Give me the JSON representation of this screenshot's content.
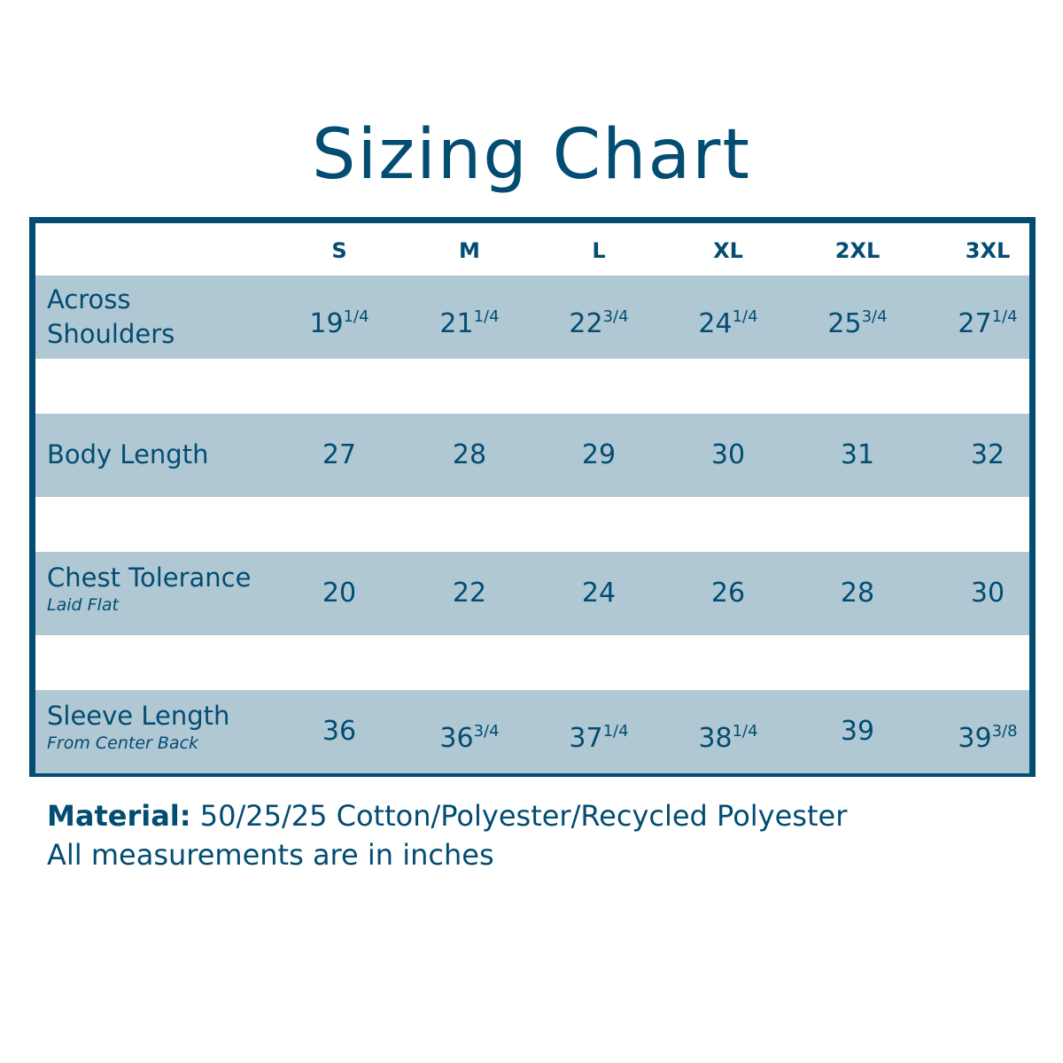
{
  "title": "Sizing Chart",
  "colors": {
    "primary": "#034c72",
    "row_fill": "#afc8d4"
  },
  "sizes": [
    "S",
    "M",
    "L",
    "XL",
    "2XL",
    "3XL"
  ],
  "rows": [
    {
      "label": "Across Shoulders",
      "sublabel": "",
      "values": [
        {
          "whole": "19",
          "frac": "1/4"
        },
        {
          "whole": "21",
          "frac": "1/4"
        },
        {
          "whole": "22",
          "frac": "3/4"
        },
        {
          "whole": "24",
          "frac": "1/4"
        },
        {
          "whole": "25",
          "frac": "3/4"
        },
        {
          "whole": "27",
          "frac": "1/4"
        }
      ]
    },
    {
      "label": "Body Length",
      "sublabel": "",
      "values": [
        {
          "whole": "27",
          "frac": ""
        },
        {
          "whole": "28",
          "frac": ""
        },
        {
          "whole": "29",
          "frac": ""
        },
        {
          "whole": "30",
          "frac": ""
        },
        {
          "whole": "31",
          "frac": ""
        },
        {
          "whole": "32",
          "frac": ""
        }
      ]
    },
    {
      "label": "Chest Tolerance",
      "sublabel": "Laid Flat",
      "values": [
        {
          "whole": "20",
          "frac": ""
        },
        {
          "whole": "22",
          "frac": ""
        },
        {
          "whole": "24",
          "frac": ""
        },
        {
          "whole": "26",
          "frac": ""
        },
        {
          "whole": "28",
          "frac": ""
        },
        {
          "whole": "30",
          "frac": ""
        }
      ]
    },
    {
      "label": "Sleeve Length",
      "sublabel": "From Center Back",
      "values": [
        {
          "whole": "36",
          "frac": ""
        },
        {
          "whole": "36",
          "frac": "3/4"
        },
        {
          "whole": "37",
          "frac": "1/4"
        },
        {
          "whole": "38",
          "frac": "1/4"
        },
        {
          "whole": "39",
          "frac": ""
        },
        {
          "whole": "39",
          "frac": "3/8"
        }
      ]
    }
  ],
  "footer": {
    "material_label": "Material:",
    "material_value": " 50/25/25 Cotton/Polyester/Recycled Polyester",
    "note": "All measurements are in inches"
  }
}
